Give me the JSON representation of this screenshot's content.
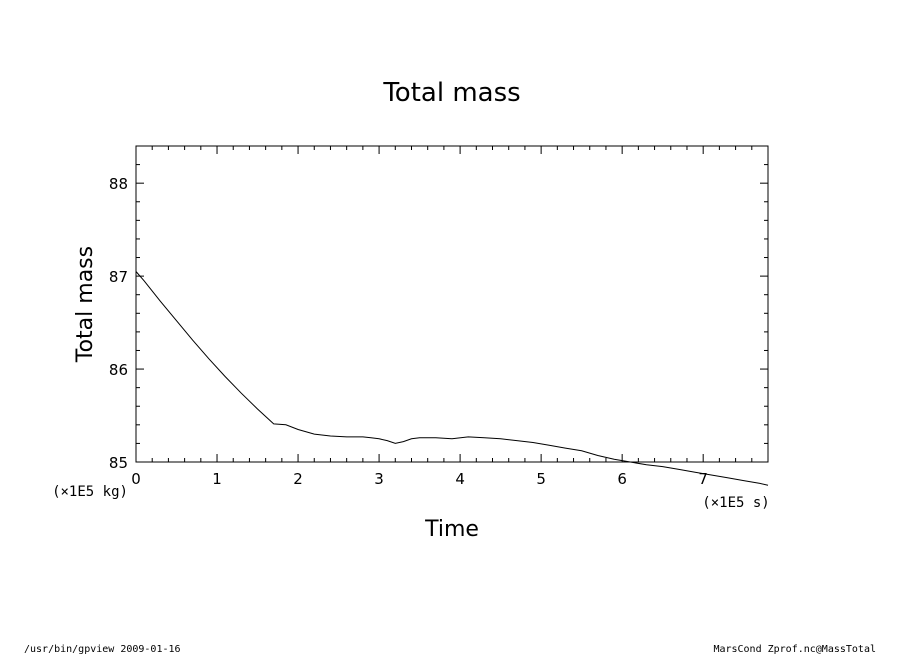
{
  "chart_data": {
    "type": "line",
    "title": "Total mass",
    "xlabel": "Time",
    "ylabel": "Total mass",
    "x_unit": "(×1E5 s)",
    "y_unit": "(×1E5 kg)",
    "xlim": [
      0,
      7.8
    ],
    "ylim": [
      85,
      88.4
    ],
    "x_ticks": [
      "0",
      "1",
      "2",
      "3",
      "4",
      "5",
      "6",
      "7"
    ],
    "y_ticks": [
      "85",
      "86",
      "87",
      "88"
    ],
    "grid": false,
    "series": [
      {
        "x": [
          0,
          0.1,
          0.3,
          0.5,
          0.7,
          0.9,
          1.1,
          1.3,
          1.5,
          1.7,
          1.85,
          2.0,
          2.2,
          2.4,
          2.6,
          2.8,
          2.9,
          3.0,
          3.1,
          3.2,
          3.3,
          3.4,
          3.5,
          3.7,
          3.9,
          4.1,
          4.3,
          4.5,
          4.7,
          4.9,
          5.1,
          5.3,
          5.5,
          5.7,
          5.9,
          6.1,
          6.3,
          6.5,
          6.7,
          6.9,
          7.1,
          7.3,
          7.5,
          7.7,
          7.8
        ],
        "y": [
          87.05,
          86.95,
          86.73,
          86.52,
          86.31,
          86.11,
          85.92,
          85.74,
          85.57,
          85.41,
          85.4,
          85.35,
          85.3,
          85.28,
          85.27,
          85.27,
          85.26,
          85.25,
          85.23,
          85.2,
          85.22,
          85.25,
          85.26,
          85.26,
          85.25,
          85.27,
          85.26,
          85.25,
          85.23,
          85.21,
          85.18,
          85.15,
          85.12,
          85.07,
          85.03,
          85.0,
          84.97,
          84.95,
          84.92,
          84.89,
          84.86,
          84.83,
          84.8,
          84.77,
          84.75
        ]
      }
    ]
  },
  "footer": {
    "left": "/usr/bin/gpview   2009-01-16",
    "right": "MarsCond_Zprof.nc@MassTotal"
  }
}
